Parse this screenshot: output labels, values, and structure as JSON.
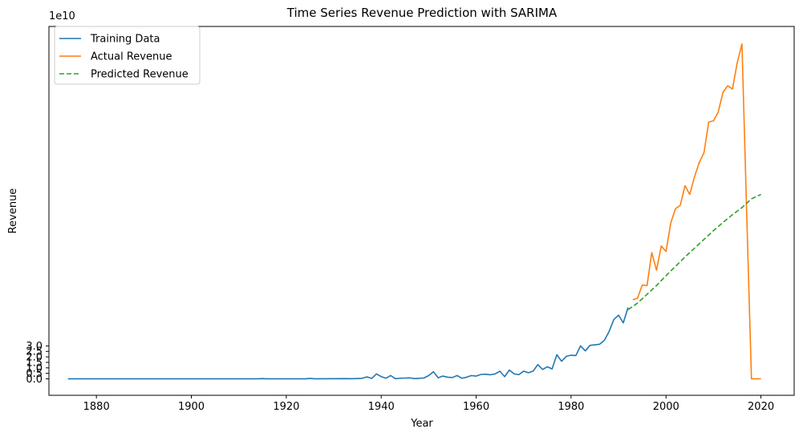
{
  "chart_data": {
    "type": "line",
    "title": "Time Series Revenue Prediction with SARIMA",
    "xlabel": "Year",
    "ylabel": "Revenue",
    "y_exponent_label": "1e10",
    "xlim": [
      1870,
      2027
    ],
    "ylim": [
      -1.5,
      32.1
    ],
    "y_scale_note": "values in units of 1e10",
    "x_ticks": [
      1880,
      1900,
      1920,
      1940,
      1960,
      1980,
      2000,
      2020
    ],
    "x_tick_labels": [
      "1880",
      "1900",
      "1920",
      "1940",
      "1960",
      "1980",
      "2000",
      "2020"
    ],
    "y_ticks": [
      0.0,
      0.5,
      1.0,
      1.5,
      2.0,
      2.5,
      3.0
    ],
    "y_tick_labels": [
      "0.0",
      "0.5",
      "1.0",
      "1.5",
      "2.0",
      "2.5",
      "3.0"
    ],
    "grid": false,
    "legend_placement": "top-left",
    "series": [
      {
        "name": "Training Data",
        "color": "#1f77b4",
        "style": "solid",
        "points": [
          [
            1874,
            0.0
          ],
          [
            1880,
            0.0
          ],
          [
            1890,
            0.0
          ],
          [
            1900,
            0.0
          ],
          [
            1910,
            0.0
          ],
          [
            1914,
            0.0
          ],
          [
            1915,
            0.02
          ],
          [
            1916,
            0.0
          ],
          [
            1918,
            0.0
          ],
          [
            1920,
            0.0
          ],
          [
            1924,
            0.0
          ],
          [
            1925,
            0.04
          ],
          [
            1926,
            0.0
          ],
          [
            1930,
            0.01
          ],
          [
            1932,
            0.02
          ],
          [
            1934,
            0.01
          ],
          [
            1936,
            0.05
          ],
          [
            1937,
            0.18
          ],
          [
            1938,
            0.04
          ],
          [
            1939,
            0.45
          ],
          [
            1940,
            0.2
          ],
          [
            1941,
            0.06
          ],
          [
            1942,
            0.3
          ],
          [
            1943,
            0.01
          ],
          [
            1944,
            0.06
          ],
          [
            1945,
            0.07
          ],
          [
            1946,
            0.09
          ],
          [
            1947,
            0.02
          ],
          [
            1948,
            0.05
          ],
          [
            1949,
            0.08
          ],
          [
            1950,
            0.3
          ],
          [
            1951,
            0.65
          ],
          [
            1952,
            0.1
          ],
          [
            1953,
            0.25
          ],
          [
            1954,
            0.15
          ],
          [
            1955,
            0.12
          ],
          [
            1956,
            0.3
          ],
          [
            1957,
            0.05
          ],
          [
            1958,
            0.15
          ],
          [
            1959,
            0.3
          ],
          [
            1960,
            0.25
          ],
          [
            1961,
            0.4
          ],
          [
            1962,
            0.42
          ],
          [
            1963,
            0.37
          ],
          [
            1964,
            0.45
          ],
          [
            1965,
            0.7
          ],
          [
            1966,
            0.2
          ],
          [
            1967,
            0.8
          ],
          [
            1968,
            0.45
          ],
          [
            1969,
            0.38
          ],
          [
            1970,
            0.7
          ],
          [
            1971,
            0.55
          ],
          [
            1972,
            0.7
          ],
          [
            1973,
            1.3
          ],
          [
            1974,
            0.85
          ],
          [
            1975,
            1.1
          ],
          [
            1976,
            0.9
          ],
          [
            1977,
            2.2
          ],
          [
            1978,
            1.6
          ],
          [
            1979,
            2.05
          ],
          [
            1980,
            2.15
          ],
          [
            1981,
            2.12
          ],
          [
            1982,
            3.0
          ],
          [
            1983,
            2.55
          ],
          [
            1984,
            3.05
          ],
          [
            1985,
            3.1
          ],
          [
            1986,
            3.15
          ],
          [
            1987,
            3.5
          ],
          [
            1988,
            4.3
          ],
          [
            1989,
            5.4
          ],
          [
            1990,
            5.8
          ],
          [
            1991,
            5.1
          ],
          [
            1992,
            6.5
          ]
        ]
      },
      {
        "name": "Actual Revenue",
        "color": "#ff7f0e",
        "style": "solid",
        "points": [
          [
            1993,
            7.2
          ],
          [
            1994,
            7.35
          ],
          [
            1995,
            8.55
          ],
          [
            1996,
            8.5
          ],
          [
            1997,
            11.5
          ],
          [
            1998,
            9.9
          ],
          [
            1999,
            12.1
          ],
          [
            2000,
            11.6
          ],
          [
            2001,
            14.2
          ],
          [
            2002,
            15.5
          ],
          [
            2003,
            15.8
          ],
          [
            2004,
            17.6
          ],
          [
            2005,
            16.8
          ],
          [
            2006,
            18.4
          ],
          [
            2007,
            19.7
          ],
          [
            2008,
            20.6
          ],
          [
            2009,
            23.4
          ],
          [
            2010,
            23.5
          ],
          [
            2011,
            24.3
          ],
          [
            2012,
            26.1
          ],
          [
            2013,
            26.7
          ],
          [
            2014,
            26.4
          ],
          [
            2015,
            28.8
          ],
          [
            2016,
            30.5
          ],
          [
            2017,
            15.0
          ],
          [
            2018,
            0.0
          ],
          [
            2020,
            0.0
          ]
        ]
      },
      {
        "name": "Predicted Revenue",
        "color": "#2ca02c",
        "style": "dashed",
        "points": [
          [
            1992,
            6.3
          ],
          [
            1994,
            6.9
          ],
          [
            1996,
            7.7
          ],
          [
            1998,
            8.5
          ],
          [
            2000,
            9.4
          ],
          [
            2002,
            10.25
          ],
          [
            2004,
            11.1
          ],
          [
            2006,
            11.9
          ],
          [
            2008,
            12.7
          ],
          [
            2010,
            13.5
          ],
          [
            2012,
            14.25
          ],
          [
            2014,
            14.95
          ],
          [
            2016,
            15.6
          ],
          [
            2018,
            16.4
          ],
          [
            2020,
            16.8
          ]
        ]
      }
    ]
  }
}
